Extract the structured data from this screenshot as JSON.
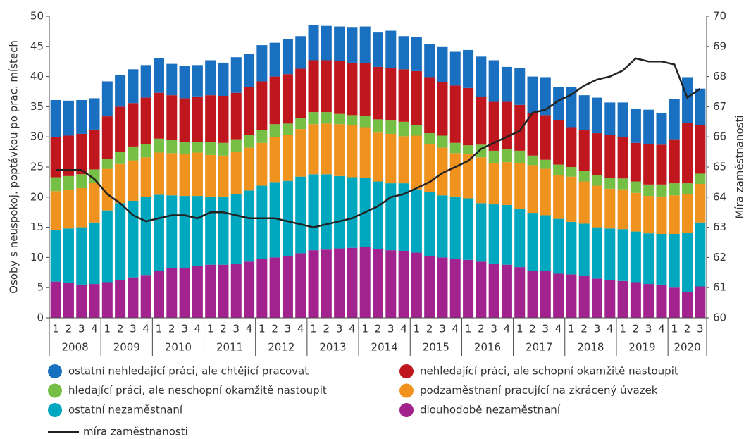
{
  "chart_data": {
    "type": "bar",
    "stacked": true,
    "y_label": "Osoby s neuspokoj. poptávkou po prac. místech",
    "y2_label": "Míra zaměstnanosti",
    "categories": [
      "1",
      "2",
      "3",
      "4",
      "1",
      "2",
      "3",
      "4",
      "1",
      "2",
      "3",
      "4",
      "1",
      "2",
      "3",
      "4",
      "1",
      "2",
      "3",
      "4",
      "1",
      "2",
      "3",
      "4",
      "1",
      "2",
      "3",
      "4",
      "1",
      "2",
      "3",
      "4",
      "1",
      "2",
      "3",
      "4",
      "1",
      "2",
      "3",
      "4",
      "1",
      "2",
      "3",
      "4",
      "1",
      "2",
      "3",
      "4",
      "1",
      "2",
      "3"
    ],
    "groups": [
      {
        "label": "2008",
        "count": 4
      },
      {
        "label": "2009",
        "count": 4
      },
      {
        "label": "2010",
        "count": 4
      },
      {
        "label": "2011",
        "count": 4
      },
      {
        "label": "2012",
        "count": 4
      },
      {
        "label": "2013",
        "count": 4
      },
      {
        "label": "2014",
        "count": 4
      },
      {
        "label": "2015",
        "count": 4
      },
      {
        "label": "2016",
        "count": 4
      },
      {
        "label": "2017",
        "count": 4
      },
      {
        "label": "2018",
        "count": 4
      },
      {
        "label": "2019",
        "count": 4
      },
      {
        "label": "2020",
        "count": 3
      }
    ],
    "ylim": [
      0,
      50
    ],
    "yticks": [
      0,
      5,
      10,
      15,
      20,
      25,
      30,
      35,
      40,
      45,
      50
    ],
    "y2lim": [
      60,
      70
    ],
    "y2ticks": [
      60,
      61,
      62,
      63,
      64,
      65,
      66,
      67,
      68,
      69,
      70
    ],
    "series": [
      {
        "name": "dlouhodobě nezaměstnaní",
        "color": "#a3238e",
        "values": [
          6.0,
          5.8,
          5.5,
          5.6,
          5.9,
          6.3,
          6.7,
          7.1,
          7.8,
          8.2,
          8.3,
          8.6,
          8.8,
          8.8,
          8.9,
          9.3,
          9.7,
          10.0,
          10.2,
          10.7,
          11.2,
          11.3,
          11.5,
          11.6,
          11.7,
          11.4,
          11.2,
          11.1,
          10.8,
          10.2,
          10.0,
          9.8,
          9.6,
          9.3,
          9.0,
          8.8,
          8.4,
          7.8,
          7.8,
          7.3,
          7.2,
          6.9,
          6.5,
          6.2,
          6.1,
          5.9,
          5.6,
          5.5,
          5.0,
          4.3,
          5.2
        ]
      },
      {
        "name": "ostatní nezaměstnaní",
        "color": "#00a7bf",
        "values": [
          8.6,
          9.0,
          9.5,
          10.2,
          11.9,
          12.7,
          12.7,
          12.9,
          12.6,
          12.1,
          11.9,
          11.6,
          11.3,
          11.3,
          11.6,
          11.8,
          12.2,
          12.5,
          12.5,
          12.7,
          12.6,
          12.5,
          12.0,
          11.7,
          11.5,
          11.2,
          11.1,
          11.2,
          10.5,
          10.6,
          10.3,
          10.3,
          10.2,
          9.7,
          9.8,
          9.9,
          9.7,
          9.6,
          9.2,
          9.1,
          8.7,
          8.7,
          8.5,
          8.6,
          8.6,
          8.4,
          8.4,
          8.4,
          8.9,
          9.8,
          10.6
        ]
      },
      {
        "name": "podzaměstnaní pracující na zkrácený úvazek",
        "color": "#f0921e",
        "values": [
          6.4,
          6.4,
          6.5,
          6.6,
          6.9,
          6.5,
          6.7,
          6.6,
          7.0,
          7.0,
          7.0,
          7.2,
          6.9,
          6.8,
          7.0,
          7.1,
          7.1,
          7.5,
          7.6,
          7.9,
          8.3,
          8.4,
          8.6,
          8.6,
          8.4,
          8.1,
          8.2,
          7.8,
          8.9,
          8.0,
          7.9,
          7.2,
          7.4,
          7.6,
          6.8,
          7.1,
          7.5,
          7.9,
          7.7,
          7.2,
          7.5,
          7.0,
          6.9,
          6.6,
          6.6,
          6.4,
          6.2,
          6.2,
          6.4,
          6.4,
          6.4
        ]
      },
      {
        "name": "hledající práci, ale neschopní okamžitě nastoupit",
        "color": "#74bf44",
        "values": [
          2.3,
          2.3,
          2.3,
          2.2,
          1.6,
          2.0,
          2.3,
          2.2,
          2.3,
          2.2,
          2.0,
          1.7,
          2.1,
          2.1,
          2.1,
          2.1,
          2.1,
          2.1,
          1.9,
          1.8,
          2.0,
          1.9,
          1.7,
          1.7,
          1.9,
          2.2,
          2.2,
          2.4,
          1.7,
          1.8,
          2.0,
          1.7,
          1.4,
          2.1,
          2.1,
          2.2,
          2.1,
          1.6,
          1.5,
          1.8,
          1.6,
          1.7,
          1.7,
          1.8,
          1.8,
          1.9,
          1.9,
          2.0,
          2.0,
          1.8,
          1.7
        ]
      },
      {
        "name": "nehledající práci, ale schopní okamžitě nastoupit",
        "color": "#c0161d",
        "values": [
          6.7,
          6.7,
          6.7,
          6.6,
          7.1,
          7.5,
          7.2,
          7.7,
          7.6,
          7.4,
          7.2,
          7.6,
          7.8,
          7.8,
          7.7,
          7.9,
          8.1,
          7.9,
          8.2,
          8.2,
          8.6,
          8.6,
          8.8,
          8.7,
          8.7,
          8.7,
          8.7,
          8.7,
          9.0,
          9.3,
          8.9,
          9.5,
          9.5,
          7.9,
          8.1,
          7.8,
          7.6,
          7.0,
          7.4,
          7.4,
          6.6,
          6.8,
          7.0,
          7.1,
          6.9,
          6.4,
          6.7,
          6.6,
          7.3,
          10.0,
          8.0
        ]
      },
      {
        "name": "ostatní nehledající práci, ale chtějící pracovat",
        "color": "#1a70c0",
        "values": [
          6.1,
          5.8,
          5.6,
          5.2,
          5.8,
          5.2,
          5.6,
          5.4,
          5.7,
          5.2,
          5.4,
          5.2,
          5.8,
          5.5,
          5.9,
          5.6,
          6.0,
          5.6,
          5.8,
          5.4,
          5.9,
          5.7,
          5.7,
          5.8,
          6.1,
          5.7,
          6.2,
          5.5,
          5.7,
          5.5,
          5.9,
          5.6,
          6.3,
          6.7,
          6.9,
          5.8,
          6.1,
          6.1,
          6.3,
          5.5,
          6.6,
          5.8,
          5.9,
          5.4,
          5.7,
          5.7,
          5.7,
          5.3,
          6.7,
          7.6,
          6.1
        ]
      },
      {
        "name": "míra zaměstnanosti",
        "color": "#222222",
        "type": "line",
        "axis": "y2",
        "values": [
          64.9,
          64.9,
          64.9,
          64.6,
          64.1,
          63.8,
          63.4,
          63.2,
          63.3,
          63.4,
          63.4,
          63.3,
          63.5,
          63.5,
          63.4,
          63.3,
          63.3,
          63.3,
          63.2,
          63.1,
          63.0,
          63.1,
          63.2,
          63.3,
          63.5,
          63.7,
          64.0,
          64.1,
          64.3,
          64.5,
          64.8,
          65.0,
          65.2,
          65.6,
          65.8,
          66.0,
          66.2,
          66.8,
          66.9,
          67.2,
          67.4,
          67.7,
          67.9,
          68.0,
          68.2,
          68.6,
          68.5,
          68.5,
          68.4,
          67.3,
          67.6
        ]
      }
    ]
  }
}
